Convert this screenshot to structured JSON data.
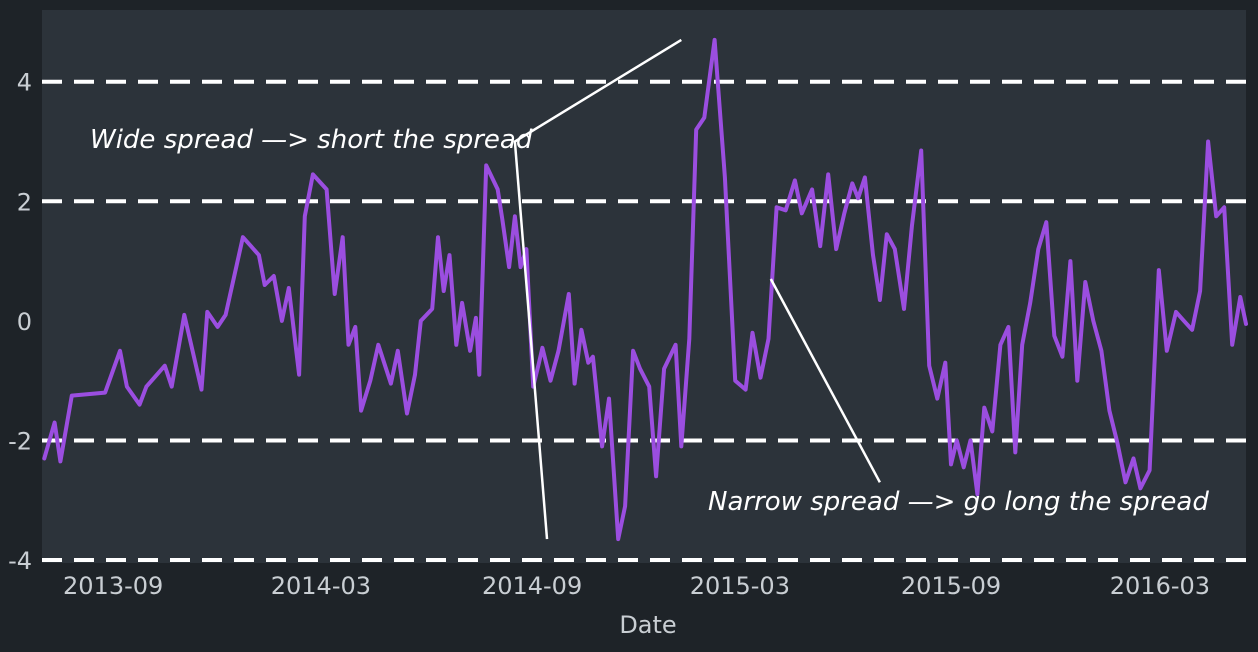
{
  "chart_data": {
    "type": "line",
    "title": "",
    "xlabel": "Date",
    "ylabel": "",
    "x_ticks": [
      "2013-09",
      "2014-03",
      "2014-09",
      "2015-03",
      "2015-09",
      "2016-03"
    ],
    "y_ticks": [
      "-4",
      "-2",
      "0",
      "2",
      "4"
    ],
    "xlim": [
      "2013-07-01",
      "2016-05-15"
    ],
    "ylim": [
      -4.05,
      5.2
    ],
    "grid": false,
    "reference_lines": [
      -4,
      -2,
      2,
      4
    ],
    "colors": {
      "background": "#1e2328",
      "plot_background": "#2c333a",
      "line": "#9b4ee0",
      "reference_line": "#ffffff",
      "annotation": "#ffffff",
      "text": "#c9ced3"
    },
    "series": [
      {
        "x": [
          "2013-07-03",
          "2013-07-12",
          "2013-07-17",
          "2013-07-27",
          "2013-08-25",
          "2013-09-07",
          "2013-09-13",
          "2013-09-24",
          "2013-09-30",
          "2013-10-16",
          "2013-10-22",
          "2013-11-02",
          "2013-11-17",
          "2013-11-22",
          "2013-12-01",
          "2013-12-08",
          "2013-12-23",
          "2013-12-30",
          "2014-01-06",
          "2014-01-11",
          "2014-01-19",
          "2014-01-26",
          "2014-02-01",
          "2014-02-10",
          "2014-02-15",
          "2014-02-22",
          "2014-03-06",
          "2014-03-13",
          "2014-03-20",
          "2014-03-25",
          "2014-03-31",
          "2014-04-05",
          "2014-04-13",
          "2014-04-20",
          "2014-05-01",
          "2014-05-07",
          "2014-05-15",
          "2014-05-22",
          "2014-05-27",
          "2014-06-06",
          "2014-06-11",
          "2014-06-16",
          "2014-06-21",
          "2014-06-27",
          "2014-07-02",
          "2014-07-09",
          "2014-07-14",
          "2014-07-17",
          "2014-07-23",
          "2014-08-02",
          "2014-08-06",
          "2014-08-12",
          "2014-08-17",
          "2014-08-22",
          "2014-08-27",
          "2014-09-02",
          "2014-09-07",
          "2014-09-10",
          "2014-09-17",
          "2014-09-24",
          "2014-10-03",
          "2014-10-08",
          "2014-10-14",
          "2014-10-20",
          "2014-10-24",
          "2014-11-01",
          "2014-11-07",
          "2014-11-15",
          "2014-11-21",
          "2014-11-28",
          "2014-12-04",
          "2014-12-12",
          "2014-12-18",
          "2014-12-25",
          "2015-01-04",
          "2015-01-09",
          "2015-01-16",
          "2015-01-22",
          "2015-01-29",
          "2015-02-07",
          "2015-02-16",
          "2015-02-25",
          "2015-03-06",
          "2015-03-12",
          "2015-03-19",
          "2015-03-26",
          "2015-04-02",
          "2015-04-10",
          "2015-04-18",
          "2015-04-24",
          "2015-05-03",
          "2015-05-10",
          "2015-05-17",
          "2015-05-24",
          "2015-05-31",
          "2015-06-07",
          "2015-06-12",
          "2015-06-18",
          "2015-06-25",
          "2015-07-01",
          "2015-07-07",
          "2015-07-14",
          "2015-07-22",
          "2015-07-29",
          "2015-08-06",
          "2015-08-13",
          "2015-08-20",
          "2015-08-27",
          "2015-09-01",
          "2015-09-06",
          "2015-09-12",
          "2015-09-18",
          "2015-09-24",
          "2015-09-30",
          "2015-10-07",
          "2015-10-14",
          "2015-10-21",
          "2015-10-27",
          "2015-11-02",
          "2015-11-09",
          "2015-11-16",
          "2015-11-23",
          "2015-11-30",
          "2015-12-07",
          "2015-12-14",
          "2015-12-20",
          "2015-12-27",
          "2016-01-03",
          "2016-01-10",
          "2016-01-17",
          "2016-01-24",
          "2016-01-31",
          "2016-02-07",
          "2016-02-13",
          "2016-02-21",
          "2016-02-29",
          "2016-03-07",
          "2016-03-15",
          "2016-03-22",
          "2016-03-29",
          "2016-04-05",
          "2016-04-12",
          "2016-04-19",
          "2016-04-26",
          "2016-05-03",
          "2016-05-10",
          "2016-05-15"
        ],
        "y": [
          -2.3,
          -1.7,
          -2.35,
          -1.25,
          -1.2,
          -0.5,
          -1.1,
          -1.4,
          -1.1,
          -0.75,
          -1.1,
          0.1,
          -1.15,
          0.15,
          -0.1,
          0.1,
          1.4,
          1.25,
          1.1,
          0.6,
          0.75,
          0.0,
          0.55,
          -0.9,
          1.75,
          2.45,
          2.2,
          0.45,
          1.4,
          -0.4,
          -0.1,
          -1.5,
          -1.0,
          -0.4,
          -1.05,
          -0.5,
          -1.55,
          -0.9,
          0.0,
          0.2,
          1.4,
          0.5,
          1.1,
          -0.4,
          0.3,
          -0.5,
          0.05,
          -0.9,
          2.6,
          2.2,
          1.7,
          0.9,
          1.75,
          0.9,
          1.2,
          -1.1,
          -0.7,
          -0.45,
          -1.0,
          -0.5,
          0.45,
          -1.05,
          -0.15,
          -0.7,
          -0.6,
          -2.1,
          -1.3,
          -3.65,
          -3.1,
          -0.5,
          -0.8,
          -1.1,
          -2.6,
          -0.8,
          -0.4,
          -2.1,
          -0.3,
          3.2,
          3.4,
          4.7,
          2.4,
          -1.0,
          -1.15,
          -0.2,
          -0.95,
          -0.3,
          1.9,
          1.85,
          2.35,
          1.8,
          2.2,
          1.25,
          2.45,
          1.2,
          1.8,
          2.3,
          2.05,
          2.4,
          1.1,
          0.35,
          1.45,
          1.2,
          0.2,
          1.6,
          2.85,
          -0.75,
          -1.3,
          -0.7,
          -2.4,
          -2.0,
          -2.45,
          -2.0,
          -2.9,
          -1.45,
          -1.85,
          -0.4,
          -0.1,
          -2.2,
          -0.4,
          0.3,
          1.2,
          1.65,
          -0.25,
          -0.6,
          1.0,
          -1.0,
          0.65,
          0.0,
          -0.5,
          -1.5,
          -2.05,
          -2.7,
          -2.3,
          -2.8,
          -2.5,
          0.85,
          -0.5,
          0.15,
          0.0,
          -0.15,
          0.5,
          3.0,
          1.75,
          1.9,
          -0.4,
          0.4,
          -0.05
        ]
      }
    ],
    "annotations": [
      {
        "text": "Wide spread —> short the spread",
        "target": {
          "x": "2015-01-09",
          "y": 4.7
        },
        "pointer": {
          "x": "2014-08-17",
          "y": 3.0
        },
        "elbow_to": {
          "x": "2014-09-14",
          "y": -3.65
        }
      },
      {
        "text": "Narrow spread —> go long the spread",
        "target": {
          "x": "2015-03-28",
          "y": 0.7
        },
        "pointer": {
          "x": "2015-07-01",
          "y": -2.7
        }
      }
    ]
  }
}
